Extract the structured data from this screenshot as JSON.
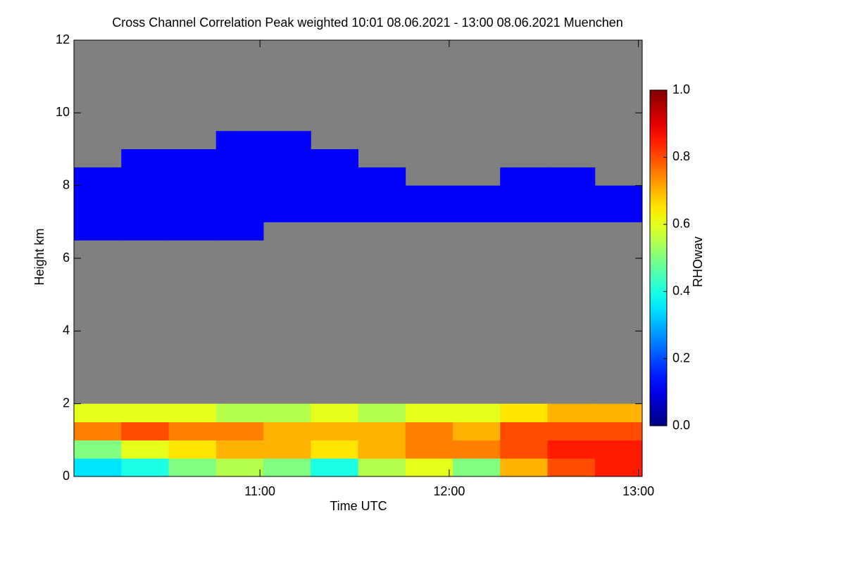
{
  "chart_data": {
    "type": "heatmap",
    "title": "Cross Channel Correlation Peak weighted   10:01 08.06.2021 - 13:00 08.06.2021 Muenchen",
    "xlabel": "Time UTC",
    "ylabel": "Height km",
    "colorbar_label": "RHOwav",
    "colormap": "jet",
    "nodata_color": "#808080",
    "xlim": [
      10.017,
      13.02
    ],
    "xticks": [
      {
        "value": 11,
        "label": "11:00"
      },
      {
        "value": 12,
        "label": "12:00"
      },
      {
        "value": 13,
        "label": "13:00"
      }
    ],
    "ylim": [
      0,
      12
    ],
    "yticks": [
      0,
      2,
      4,
      6,
      8,
      10,
      12
    ],
    "clim": [
      0,
      1
    ],
    "cticks": [
      {
        "value": 0,
        "label": "0.0"
      },
      {
        "value": 0.2,
        "label": "0.2"
      },
      {
        "value": 0.4,
        "label": "0.4"
      },
      {
        "value": 0.6,
        "label": "0.6"
      },
      {
        "value": 0.8,
        "label": "0.8"
      },
      {
        "value": 1,
        "label": "1.0"
      }
    ],
    "z": [
      [
        0.35,
        0.4,
        0.5,
        0.55,
        0.5,
        0.4,
        0.55,
        0.6,
        0.5,
        0.7,
        0.8,
        0.85
      ],
      [
        0.5,
        0.6,
        0.65,
        0.7,
        0.7,
        0.65,
        0.7,
        0.75,
        0.75,
        0.8,
        0.85,
        0.85
      ],
      [
        0.75,
        0.8,
        0.75,
        0.75,
        0.7,
        0.7,
        0.7,
        0.75,
        0.7,
        0.8,
        0.8,
        0.8
      ],
      [
        0.6,
        0.6,
        0.6,
        0.55,
        0.55,
        0.6,
        0.55,
        0.6,
        0.6,
        0.65,
        0.7,
        0.7
      ],
      [
        null,
        null,
        null,
        null,
        null,
        null,
        null,
        null,
        null,
        null,
        null,
        null
      ],
      [
        null,
        null,
        null,
        null,
        null,
        null,
        null,
        null,
        null,
        null,
        null,
        null
      ],
      [
        null,
        null,
        null,
        null,
        null,
        null,
        null,
        null,
        null,
        null,
        null,
        null
      ],
      [
        null,
        null,
        null,
        null,
        null,
        null,
        null,
        null,
        null,
        null,
        null,
        null
      ],
      [
        null,
        null,
        null,
        null,
        null,
        null,
        null,
        null,
        null,
        null,
        null,
        null
      ],
      [
        null,
        null,
        null,
        null,
        null,
        null,
        null,
        null,
        null,
        null,
        null,
        null
      ],
      [
        null,
        null,
        null,
        null,
        null,
        null,
        null,
        null,
        null,
        null,
        null,
        null
      ],
      [
        null,
        null,
        null,
        null,
        null,
        null,
        null,
        null,
        null,
        null,
        null,
        null
      ],
      [
        null,
        null,
        null,
        null,
        null,
        null,
        null,
        null,
        null,
        null,
        null,
        null
      ],
      [
        0.12,
        0.12,
        0.12,
        0.12,
        null,
        null,
        null,
        null,
        null,
        null,
        null,
        null
      ],
      [
        0.12,
        0.12,
        0.12,
        0.12,
        0.12,
        0.12,
        0.12,
        0.12,
        0.12,
        0.12,
        0.12,
        0.12
      ],
      [
        0.12,
        0.12,
        0.12,
        0.12,
        0.12,
        0.12,
        0.12,
        0.12,
        0.12,
        0.12,
        0.12,
        0.12
      ],
      [
        0.12,
        0.12,
        0.12,
        0.12,
        0.12,
        0.12,
        0.12,
        null,
        null,
        0.12,
        0.12,
        null
      ],
      [
        null,
        0.12,
        0.12,
        0.12,
        0.12,
        0.12,
        null,
        null,
        null,
        null,
        null,
        null
      ],
      [
        null,
        null,
        null,
        0.12,
        0.12,
        null,
        null,
        null,
        null,
        null,
        null,
        null
      ],
      [
        null,
        null,
        null,
        null,
        null,
        null,
        null,
        null,
        null,
        null,
        null,
        null
      ],
      [
        null,
        null,
        null,
        null,
        null,
        null,
        null,
        null,
        null,
        null,
        null,
        null
      ],
      [
        null,
        null,
        null,
        null,
        null,
        null,
        null,
        null,
        null,
        null,
        null,
        null
      ],
      [
        null,
        null,
        null,
        null,
        null,
        null,
        null,
        null,
        null,
        null,
        null,
        null
      ],
      [
        null,
        null,
        null,
        null,
        null,
        null,
        null,
        null,
        null,
        null,
        null,
        null
      ]
    ]
  }
}
